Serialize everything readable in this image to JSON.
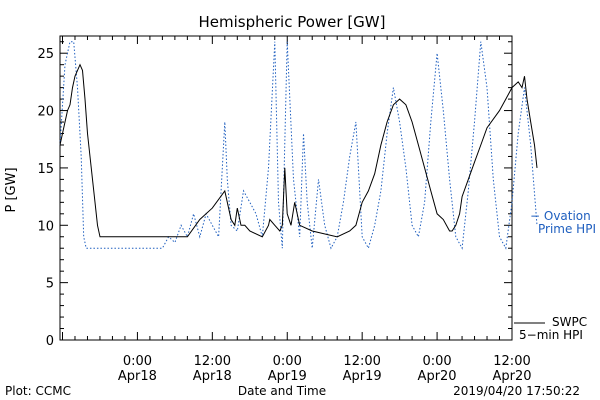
{
  "chart_data": {
    "type": "line",
    "title": "Hemispheric Power [GW]",
    "ylabel": "P [GW]",
    "xlabel": "Date and Time",
    "ylim": [
      0,
      26.5
    ],
    "xlim_hours": [
      -6.2,
      30.0
    ],
    "x_ticks": [
      {
        "h": 0,
        "label1": "0:00",
        "label2": "Apr18"
      },
      {
        "h": 6,
        "label1": "12:00",
        "label2": "Apr18"
      },
      {
        "h": 12,
        "label1": "0:00",
        "label2": "Apr19"
      },
      {
        "h": 18,
        "label1": "12:00",
        "label2": "Apr19"
      },
      {
        "h": 24,
        "label1": "0:00",
        "label2": "Apr20"
      },
      {
        "h": 30,
        "label1": "12:00",
        "label2": "Apr20"
      }
    ],
    "y_ticks": [
      "0",
      "5",
      "10",
      "15",
      "20",
      "25"
    ],
    "series": [
      {
        "name": "SWPC 5-min HPI",
        "label_line1": "SWPC",
        "label_line2": "5−min HPI",
        "color": "#000000",
        "style": "solid",
        "x": [
          -6.2,
          -6.0,
          -5.8,
          -5.6,
          -5.4,
          -5.2,
          -5.0,
          -4.8,
          -4.6,
          -4.4,
          -4.2,
          -4.0,
          -3.8,
          -3.6,
          -3.4,
          -3.2,
          -3.0,
          -2.8,
          -2.6,
          -2.4,
          -2.0,
          -1.0,
          0.0,
          2.0,
          4.0,
          5.0,
          6.0,
          7.0,
          7.5,
          7.8,
          8.0,
          8.3,
          8.6,
          9.0,
          10.0,
          10.5,
          10.6,
          11.0,
          11.4,
          11.6,
          11.8,
          12.0,
          12.3,
          12.6,
          13.0,
          14.0,
          16.0,
          17.0,
          17.5,
          18.0,
          18.5,
          19.0,
          19.5,
          20.0,
          20.5,
          21.0,
          21.5,
          22.0,
          22.5,
          23.0,
          23.5,
          24.0,
          24.5,
          25.0,
          25.2,
          25.5,
          25.8,
          26.0,
          26.5,
          27.0,
          27.5,
          28.0,
          29.0,
          29.5,
          30.0,
          30.5,
          30.8,
          31.0,
          31.2,
          31.5,
          31.8,
          32.0
        ],
        "y": [
          17,
          18,
          19,
          20,
          20.5,
          22,
          23,
          23.5,
          24,
          23.5,
          21,
          18,
          16,
          14,
          12,
          10,
          9,
          9,
          9,
          9,
          9,
          9,
          9,
          9,
          9,
          10.5,
          11.5,
          13,
          10.5,
          10,
          11.5,
          10,
          10,
          9.5,
          9,
          10,
          10.5,
          10,
          9.5,
          10,
          15,
          11,
          10,
          12,
          10,
          9.5,
          9,
          9.5,
          10,
          12,
          13,
          14.5,
          17,
          19,
          20.5,
          21,
          20.5,
          19,
          17,
          15,
          13,
          11,
          10.5,
          9.5,
          9.5,
          10,
          11,
          12.5,
          14,
          15.5,
          17,
          18.5,
          20,
          21,
          22,
          22.5,
          22,
          23,
          21,
          19,
          17,
          15
        ]
      },
      {
        "name": "Ovation Prime HPI",
        "label_line1": "− Ovation",
        "label_line2": "Prime HPI",
        "color": "#1f5fbf",
        "style": "dotted",
        "x": [
          -6.2,
          -5.8,
          -5.4,
          -5.1,
          -4.8,
          -4.5,
          -4.3,
          -4.1,
          -4.0,
          -3.5,
          -3.0,
          -2.0,
          -1.0,
          0.0,
          1.0,
          2.0,
          2.5,
          3.0,
          3.5,
          4.0,
          4.5,
          5.0,
          5.5,
          6.0,
          6.5,
          7.0,
          7.2,
          7.5,
          8.0,
          8.5,
          9.0,
          9.5,
          10.0,
          10.5,
          11.0,
          11.3,
          11.6,
          12.0,
          12.5,
          13.0,
          13.3,
          13.6,
          14.0,
          14.5,
          15.0,
          15.5,
          16.0,
          16.5,
          17.0,
          17.5,
          18.0,
          18.5,
          19.0,
          19.5,
          20.0,
          20.5,
          21.0,
          21.5,
          22.0,
          22.5,
          23.0,
          23.5,
          24.0,
          24.5,
          25.0,
          25.5,
          26.0,
          26.5,
          27.0,
          27.5,
          28.0,
          28.5,
          29.0,
          29.5,
          30.0,
          30.5,
          31.0,
          31.5,
          32.0
        ],
        "y": [
          17,
          24,
          26,
          26,
          22,
          16,
          9,
          8,
          8,
          8,
          8,
          8,
          8,
          8,
          8,
          8,
          9,
          8.5,
          10,
          9,
          11,
          9,
          11,
          10,
          9,
          19,
          14,
          10,
          9.5,
          13,
          12,
          11,
          9,
          15,
          26,
          12,
          8,
          26,
          14,
          9,
          18,
          12,
          8,
          14,
          10,
          8,
          9,
          12,
          16,
          19,
          9,
          8,
          10,
          13,
          18,
          22,
          19,
          15,
          10,
          9,
          12,
          19,
          25,
          20,
          14,
          9,
          8,
          13,
          19,
          26,
          22,
          14,
          9,
          8,
          12,
          18,
          22,
          17,
          10
        ]
      }
    ]
  },
  "footer": {
    "left": "Plot: CCMC",
    "center": "Date and Time",
    "right": "2019/04/20 17:50:22"
  }
}
